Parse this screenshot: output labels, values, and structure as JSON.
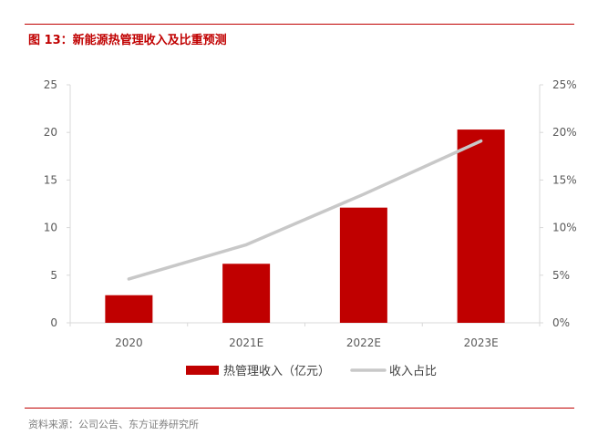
{
  "figure": {
    "title": "图 13：新能源热管理收入及比重预测",
    "source": "资料来源：公司公告、东方证券研究所"
  },
  "colors": {
    "accent": "#c00000",
    "bar": "#c00000",
    "line": "#c8c8c8",
    "axis_text": "#595959",
    "axis_line": "#d9d9d9"
  },
  "chart_data": {
    "type": "bar",
    "categories": [
      "2020",
      "2021E",
      "2022E",
      "2023E"
    ],
    "series": [
      {
        "name": "热管理收入（亿元）",
        "type": "bar",
        "axis": "left",
        "values": [
          2.9,
          6.2,
          12.1,
          20.3
        ]
      },
      {
        "name": "收入占比",
        "type": "line",
        "axis": "right",
        "values": [
          0.046,
          0.082,
          0.135,
          0.191
        ]
      }
    ],
    "ylim": [
      0,
      25
    ],
    "yticks": [
      "0",
      "5",
      "10",
      "15",
      "20",
      "25"
    ],
    "y2lim": [
      0,
      0.25
    ],
    "y2ticks": [
      "0%",
      "5%",
      "10%",
      "15%",
      "20%",
      "25%"
    ],
    "grid": false,
    "legend_position": "bottom"
  }
}
